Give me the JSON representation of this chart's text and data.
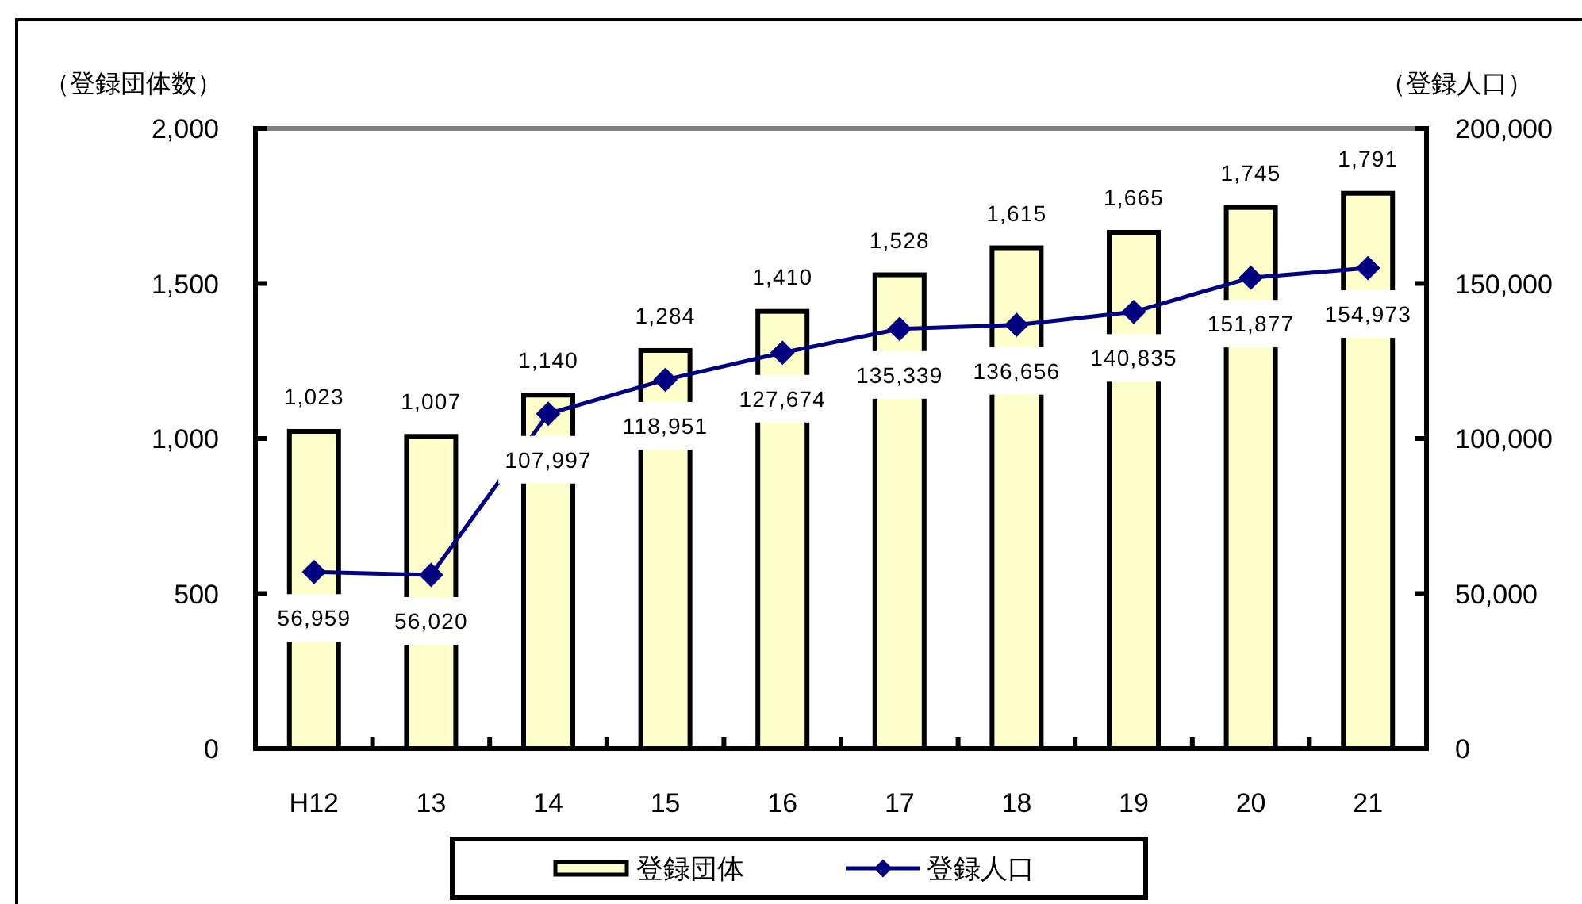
{
  "chart_data": {
    "type": "bar",
    "ylabel": "（登録団体数）",
    "y2label": "（登録人口）",
    "categories": [
      "H12",
      "13",
      "14",
      "15",
      "16",
      "17",
      "18",
      "19",
      "20",
      "21"
    ],
    "ylim": [
      0,
      2000
    ],
    "yticks": [
      0,
      500,
      {
        "value": 1000,
        "label": "1,000"
      },
      {
        "value": 1500,
        "label": "1,500"
      },
      {
        "value": 2000,
        "label": "2,000"
      }
    ],
    "y2lim": [
      0,
      200000
    ],
    "y2ticks": [
      0,
      {
        "value": 50000,
        "label": "50,000"
      },
      {
        "value": 100000,
        "label": "100,000"
      },
      {
        "value": 150000,
        "label": "150,000"
      },
      {
        "value": 200000,
        "label": "200,000"
      }
    ],
    "series": [
      {
        "name": "登録団体",
        "color": "#ffffcc",
        "values": [
          1023,
          1007,
          1140,
          1284,
          1410,
          1528,
          1615,
          1665,
          1745,
          1791
        ],
        "value_labels": [
          "1,023",
          "1,007",
          "1,140",
          "1,284",
          "1,410",
          "1,528",
          "1,615",
          "1,665",
          "1,745",
          "1,791"
        ]
      },
      {
        "name": "登録人口",
        "type": "line",
        "axis": "y2",
        "color": "#000080",
        "values": [
          56959,
          56020,
          107997,
          118951,
          127674,
          135339,
          136656,
          140835,
          151877,
          154973
        ],
        "value_labels": [
          "56,959",
          "56,020",
          "107,997",
          "118,951",
          "127,674",
          "135,339",
          "136,656",
          "140,835",
          "151,877",
          "154,973"
        ]
      }
    ],
    "marker": "diamond",
    "legend": "bottom"
  }
}
